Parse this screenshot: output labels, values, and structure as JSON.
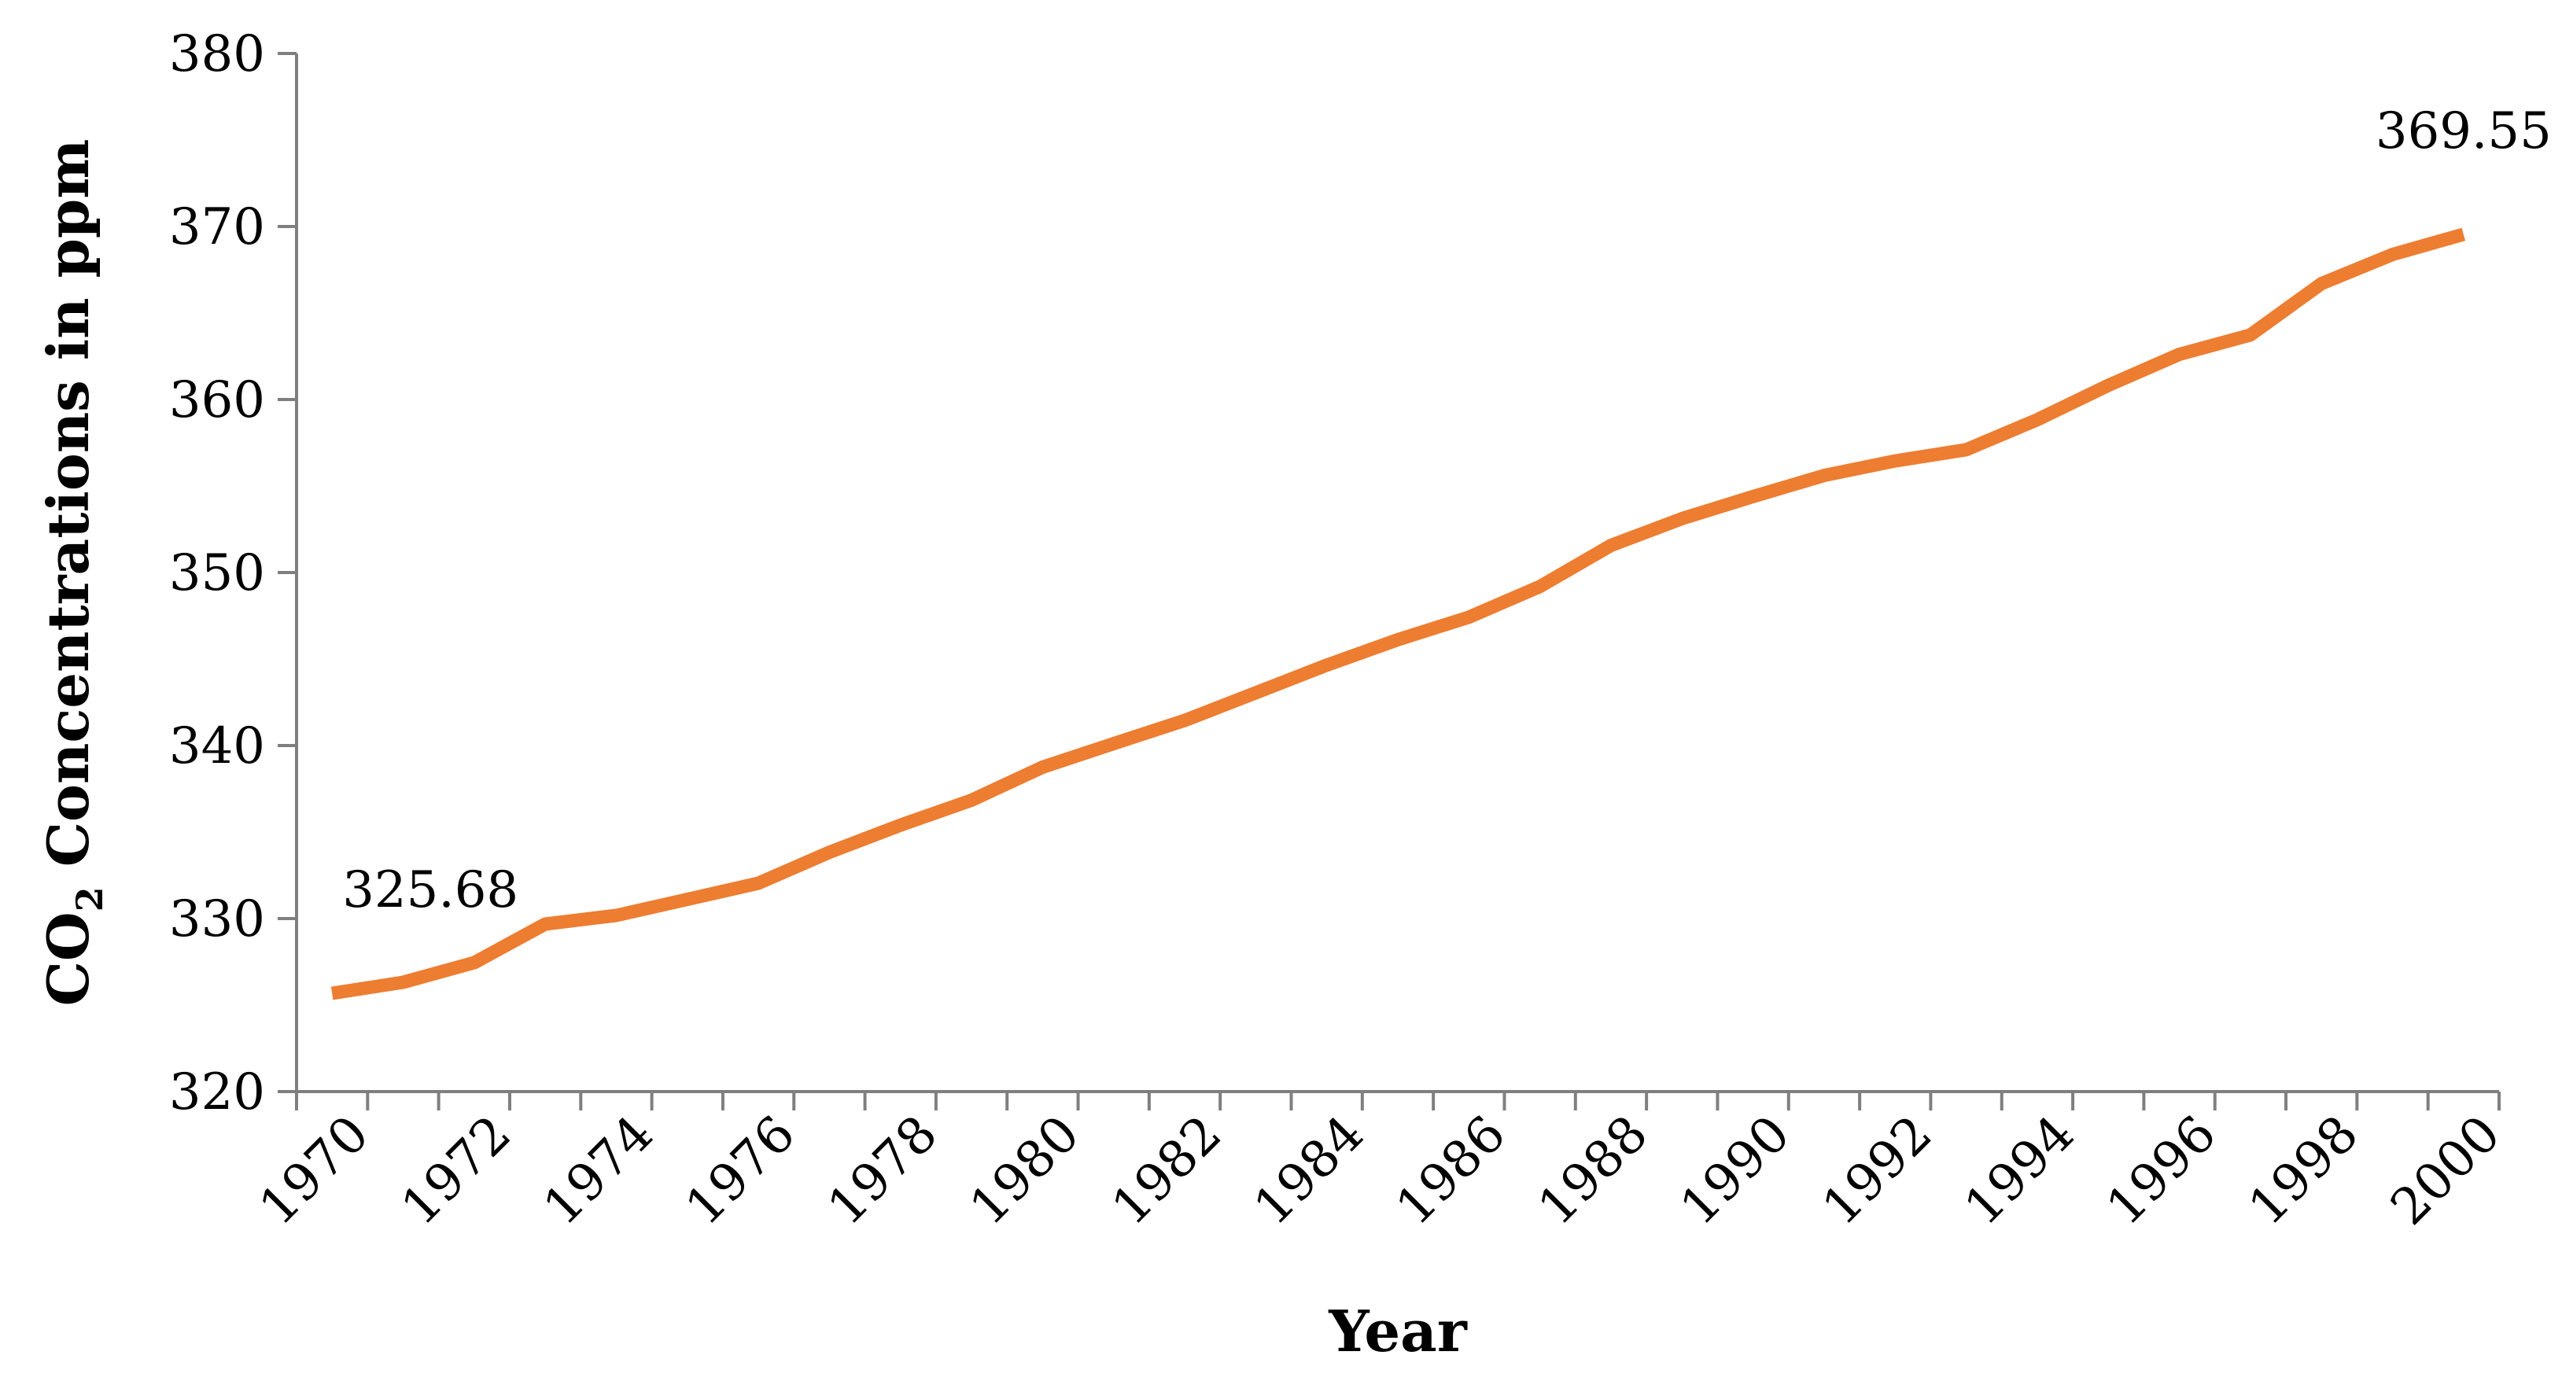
{
  "chart_data": {
    "type": "line",
    "title": "",
    "xlabel": "Year",
    "ylabel": {
      "prefix": "CO",
      "subscript": "2",
      "suffix": " Concentrations in ppm"
    },
    "x": [
      1970,
      1971,
      1972,
      1973,
      1974,
      1975,
      1976,
      1977,
      1978,
      1979,
      1980,
      1981,
      1982,
      1983,
      1984,
      1985,
      1986,
      1987,
      1988,
      1989,
      1990,
      1991,
      1992,
      1993,
      1994,
      1995,
      1996,
      1997,
      1998,
      1999,
      2000
    ],
    "x_tick_labels": [
      "1970",
      "1972",
      "1974",
      "1976",
      "1978",
      "1980",
      "1982",
      "1984",
      "1986",
      "1988",
      "1990",
      "1992",
      "1994",
      "1996",
      "1998",
      "2000"
    ],
    "y_tick_labels": [
      "320",
      "330",
      "340",
      "350",
      "360",
      "370",
      "380"
    ],
    "ylim": [
      320,
      380
    ],
    "series": [
      {
        "values": [
          325.68,
          326.32,
          327.45,
          329.68,
          330.18,
          331.11,
          332.04,
          333.83,
          335.4,
          336.84,
          338.75,
          340.11,
          341.45,
          343.05,
          344.65,
          346.12,
          347.42,
          349.19,
          351.57,
          353.12,
          354.39,
          355.61,
          356.45,
          357.1,
          358.83,
          360.82,
          362.61,
          363.73,
          366.7,
          368.38,
          369.55
        ],
        "color": "#ED7D31"
      }
    ],
    "annotations": [
      {
        "text": "325.68",
        "year": 1970
      },
      {
        "text": "369.55",
        "year": 2000
      }
    ],
    "grid": false,
    "legend": "none"
  }
}
